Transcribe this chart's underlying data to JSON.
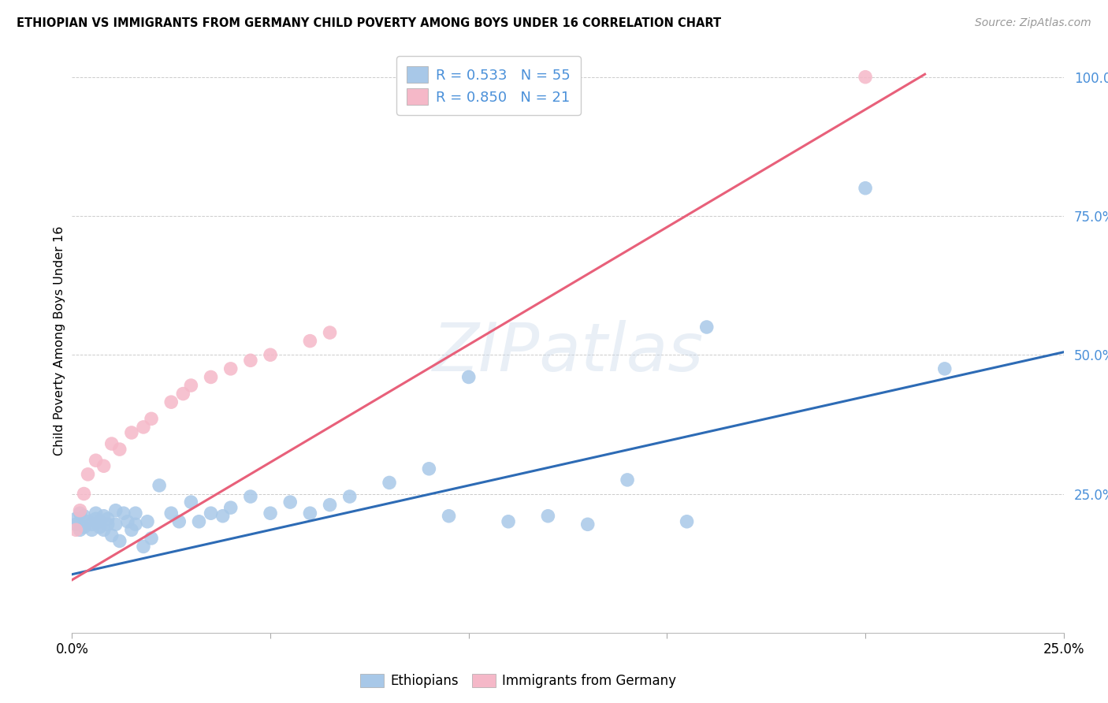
{
  "title": "ETHIOPIAN VS IMMIGRANTS FROM GERMANY CHILD POVERTY AMONG BOYS UNDER 16 CORRELATION CHART",
  "source": "Source: ZipAtlas.com",
  "ylabel": "Child Poverty Among Boys Under 16",
  "xlim": [
    0.0,
    0.25
  ],
  "ylim": [
    0.0,
    1.05
  ],
  "watermark": "ZIPatlas",
  "blue_r": 0.533,
  "blue_n": 55,
  "pink_r": 0.85,
  "pink_n": 21,
  "blue_dot_color": "#a8c8e8",
  "pink_dot_color": "#f5b8c8",
  "blue_line_color": "#2d6bb5",
  "pink_line_color": "#e8607a",
  "legend_text_color": "#4a90d9",
  "legend_label_blue": "Ethiopians",
  "legend_label_pink": "Immigrants from Germany",
  "blue_x": [
    0.001,
    0.001,
    0.002,
    0.002,
    0.003,
    0.003,
    0.004,
    0.005,
    0.005,
    0.006,
    0.006,
    0.007,
    0.007,
    0.008,
    0.008,
    0.009,
    0.009,
    0.01,
    0.011,
    0.011,
    0.012,
    0.013,
    0.014,
    0.015,
    0.016,
    0.016,
    0.018,
    0.019,
    0.02,
    0.022,
    0.025,
    0.027,
    0.03,
    0.032,
    0.035,
    0.038,
    0.04,
    0.045,
    0.05,
    0.055,
    0.06,
    0.065,
    0.07,
    0.08,
    0.09,
    0.095,
    0.1,
    0.11,
    0.12,
    0.13,
    0.14,
    0.155,
    0.16,
    0.2,
    0.22
  ],
  "blue_y": [
    0.195,
    0.205,
    0.185,
    0.215,
    0.19,
    0.21,
    0.2,
    0.195,
    0.185,
    0.205,
    0.215,
    0.19,
    0.2,
    0.185,
    0.21,
    0.195,
    0.205,
    0.175,
    0.22,
    0.195,
    0.165,
    0.215,
    0.2,
    0.185,
    0.195,
    0.215,
    0.155,
    0.2,
    0.17,
    0.265,
    0.215,
    0.2,
    0.235,
    0.2,
    0.215,
    0.21,
    0.225,
    0.245,
    0.215,
    0.235,
    0.215,
    0.23,
    0.245,
    0.27,
    0.295,
    0.21,
    0.46,
    0.2,
    0.21,
    0.195,
    0.275,
    0.2,
    0.55,
    0.8,
    0.475
  ],
  "pink_x": [
    0.001,
    0.002,
    0.003,
    0.004,
    0.006,
    0.008,
    0.01,
    0.012,
    0.015,
    0.018,
    0.02,
    0.025,
    0.028,
    0.03,
    0.035,
    0.04,
    0.045,
    0.05,
    0.06,
    0.065,
    0.2
  ],
  "pink_y": [
    0.185,
    0.22,
    0.25,
    0.285,
    0.31,
    0.3,
    0.34,
    0.33,
    0.36,
    0.37,
    0.385,
    0.415,
    0.43,
    0.445,
    0.46,
    0.475,
    0.49,
    0.5,
    0.525,
    0.54,
    1.0
  ],
  "blue_line_x0": 0.0,
  "blue_line_y0": 0.105,
  "blue_line_x1": 0.25,
  "blue_line_y1": 0.505,
  "pink_line_x0": 0.0,
  "pink_line_y0": 0.095,
  "pink_line_x1": 0.215,
  "pink_line_y1": 1.005
}
